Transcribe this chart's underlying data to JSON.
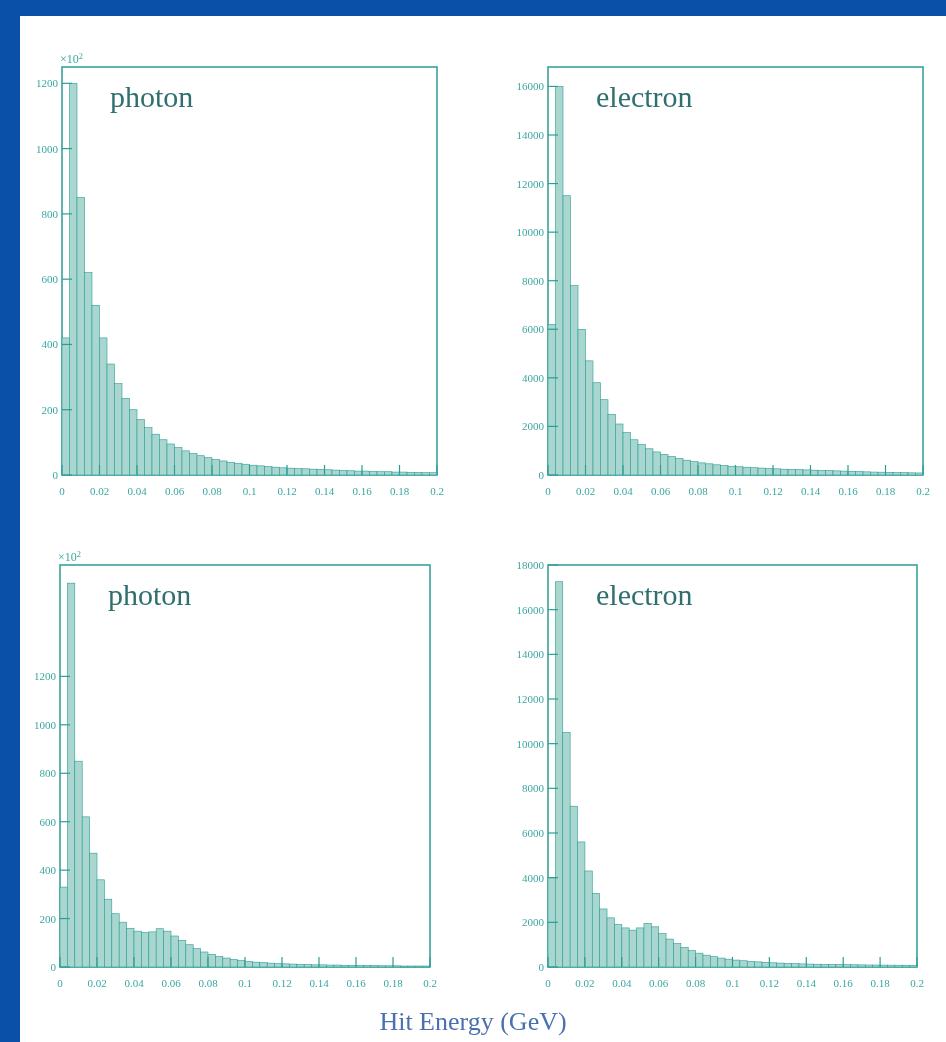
{
  "chart_data": [
    {
      "type": "histogram",
      "title": "photon",
      "ylabel": "×10$^{2}$",
      "color": "#a9d6cf",
      "bins": [
        0,
        0.004,
        0.008,
        0.012,
        0.016,
        0.02,
        0.024,
        0.028,
        0.032,
        0.036,
        0.04,
        0.044,
        0.048,
        0.052,
        0.056,
        0.06,
        0.064,
        0.068,
        0.072,
        0.076,
        0.08,
        0.084,
        0.088,
        0.092,
        0.096,
        0.1,
        0.104,
        0.108,
        0.112,
        0.116,
        0.12,
        0.124,
        0.128,
        0.132,
        0.136,
        0.14,
        0.144,
        0.148,
        0.152,
        0.156,
        0.16,
        0.164,
        0.168,
        0.172,
        0.176,
        0.18,
        0.184,
        0.188,
        0.192,
        0.196,
        0.2
      ],
      "values": [
        420,
        1200,
        850,
        620,
        520,
        420,
        340,
        280,
        235,
        200,
        170,
        145,
        125,
        108,
        95,
        84,
        74,
        66,
        59,
        53,
        48,
        43,
        39,
        36,
        33,
        30,
        28,
        26,
        24,
        22,
        21,
        20,
        19,
        18,
        17,
        16,
        15,
        14,
        13,
        12,
        12,
        11,
        10,
        10,
        9,
        9,
        8,
        8,
        7,
        7
      ],
      "xlim": [
        0,
        0.2
      ],
      "xticks": [
        0,
        0.02,
        0.04,
        0.06,
        0.08,
        0.1,
        0.12,
        0.14,
        0.16,
        0.18,
        0.2
      ],
      "ylim": [
        0,
        1250
      ],
      "yticks": [
        0,
        200,
        400,
        600,
        800,
        1000,
        1200
      ]
    },
    {
      "type": "histogram",
      "title": "electron",
      "color": "#a9d6cf",
      "bins": [
        0,
        0.004,
        0.008,
        0.012,
        0.016,
        0.02,
        0.024,
        0.028,
        0.032,
        0.036,
        0.04,
        0.044,
        0.048,
        0.052,
        0.056,
        0.06,
        0.064,
        0.068,
        0.072,
        0.076,
        0.08,
        0.084,
        0.088,
        0.092,
        0.096,
        0.1,
        0.104,
        0.108,
        0.112,
        0.116,
        0.12,
        0.124,
        0.128,
        0.132,
        0.136,
        0.14,
        0.144,
        0.148,
        0.152,
        0.156,
        0.16,
        0.164,
        0.168,
        0.172,
        0.176,
        0.18,
        0.184,
        0.188,
        0.192,
        0.196,
        0.2
      ],
      "values": [
        6200,
        16000,
        11500,
        7800,
        6000,
        4700,
        3800,
        3100,
        2500,
        2100,
        1750,
        1450,
        1250,
        1080,
        950,
        850,
        760,
        680,
        610,
        550,
        500,
        460,
        420,
        390,
        360,
        340,
        320,
        300,
        285,
        270,
        255,
        240,
        230,
        220,
        210,
        200,
        190,
        180,
        170,
        160,
        150,
        140,
        130,
        120,
        115,
        110,
        100,
        95,
        90,
        85
      ],
      "xlim": [
        0,
        0.2
      ],
      "xticks": [
        0,
        0.02,
        0.04,
        0.06,
        0.08,
        0.1,
        0.12,
        0.14,
        0.16,
        0.18,
        0.2
      ],
      "ylim": [
        0,
        16800
      ],
      "yticks": [
        0,
        2000,
        4000,
        6000,
        8000,
        10000,
        12000,
        14000,
        16000
      ]
    },
    {
      "type": "histogram",
      "title": "photon",
      "ylabel": "×10$^{2}$",
      "annotations": [
        "Hit Energy (GeV)"
      ],
      "color": "#a9d6cf",
      "bins": [
        0,
        0.004,
        0.008,
        0.012,
        0.016,
        0.02,
        0.024,
        0.028,
        0.032,
        0.036,
        0.04,
        0.044,
        0.048,
        0.052,
        0.056,
        0.06,
        0.064,
        0.068,
        0.072,
        0.076,
        0.08,
        0.084,
        0.088,
        0.092,
        0.096,
        0.1,
        0.104,
        0.108,
        0.112,
        0.116,
        0.12,
        0.124,
        0.128,
        0.132,
        0.136,
        0.14,
        0.144,
        0.148,
        0.152,
        0.156,
        0.16,
        0.164,
        0.168,
        0.172,
        0.176,
        0.18,
        0.184,
        0.188,
        0.192,
        0.196,
        0.2
      ],
      "values": [
        330,
        1585,
        850,
        620,
        470,
        360,
        280,
        220,
        185,
        160,
        148,
        142,
        145,
        158,
        148,
        128,
        110,
        92,
        76,
        62,
        52,
        44,
        37,
        31,
        27,
        23,
        20,
        18,
        16,
        14,
        13,
        12,
        11,
        10,
        9,
        9,
        8,
        8,
        7,
        7,
        6,
        6,
        6,
        5,
        5,
        5,
        4,
        4,
        4,
        4
      ],
      "xlim": [
        0,
        0.2
      ],
      "xticks": [
        0,
        0.02,
        0.04,
        0.06,
        0.08,
        0.1,
        0.12,
        0.14,
        0.16,
        0.18,
        0.2
      ],
      "ylim": [
        0,
        1660
      ],
      "yticks": [
        0,
        200,
        400,
        600,
        800,
        1000,
        1200
      ]
    },
    {
      "type": "histogram",
      "title": "electron",
      "color": "#a9d6cf",
      "bins": [
        0,
        0.004,
        0.008,
        0.012,
        0.016,
        0.02,
        0.024,
        0.028,
        0.032,
        0.036,
        0.04,
        0.044,
        0.048,
        0.052,
        0.056,
        0.06,
        0.064,
        0.068,
        0.072,
        0.076,
        0.08,
        0.084,
        0.088,
        0.092,
        0.096,
        0.1,
        0.104,
        0.108,
        0.112,
        0.116,
        0.12,
        0.124,
        0.128,
        0.132,
        0.136,
        0.14,
        0.144,
        0.148,
        0.152,
        0.156,
        0.16,
        0.164,
        0.168,
        0.172,
        0.176,
        0.18,
        0.184,
        0.188,
        0.192,
        0.196,
        0.2
      ],
      "values": [
        4000,
        17250,
        10500,
        7200,
        5600,
        4300,
        3300,
        2600,
        2200,
        1900,
        1750,
        1650,
        1750,
        1950,
        1800,
        1500,
        1250,
        1050,
        880,
        740,
        620,
        530,
        460,
        400,
        350,
        310,
        280,
        250,
        230,
        210,
        190,
        175,
        160,
        150,
        140,
        130,
        125,
        120,
        115,
        110,
        105,
        100,
        95,
        90,
        88,
        85,
        82,
        80,
        78,
        75
      ],
      "xlim": [
        0,
        0.2
      ],
      "xticks": [
        0,
        0.02,
        0.04,
        0.06,
        0.08,
        0.1,
        0.12,
        0.14,
        0.16,
        0.18,
        0.2
      ],
      "ylim": [
        0,
        18000
      ],
      "yticks": [
        0,
        2000,
        4000,
        6000,
        8000,
        10000,
        12000,
        14000,
        16000,
        18000
      ]
    }
  ]
}
